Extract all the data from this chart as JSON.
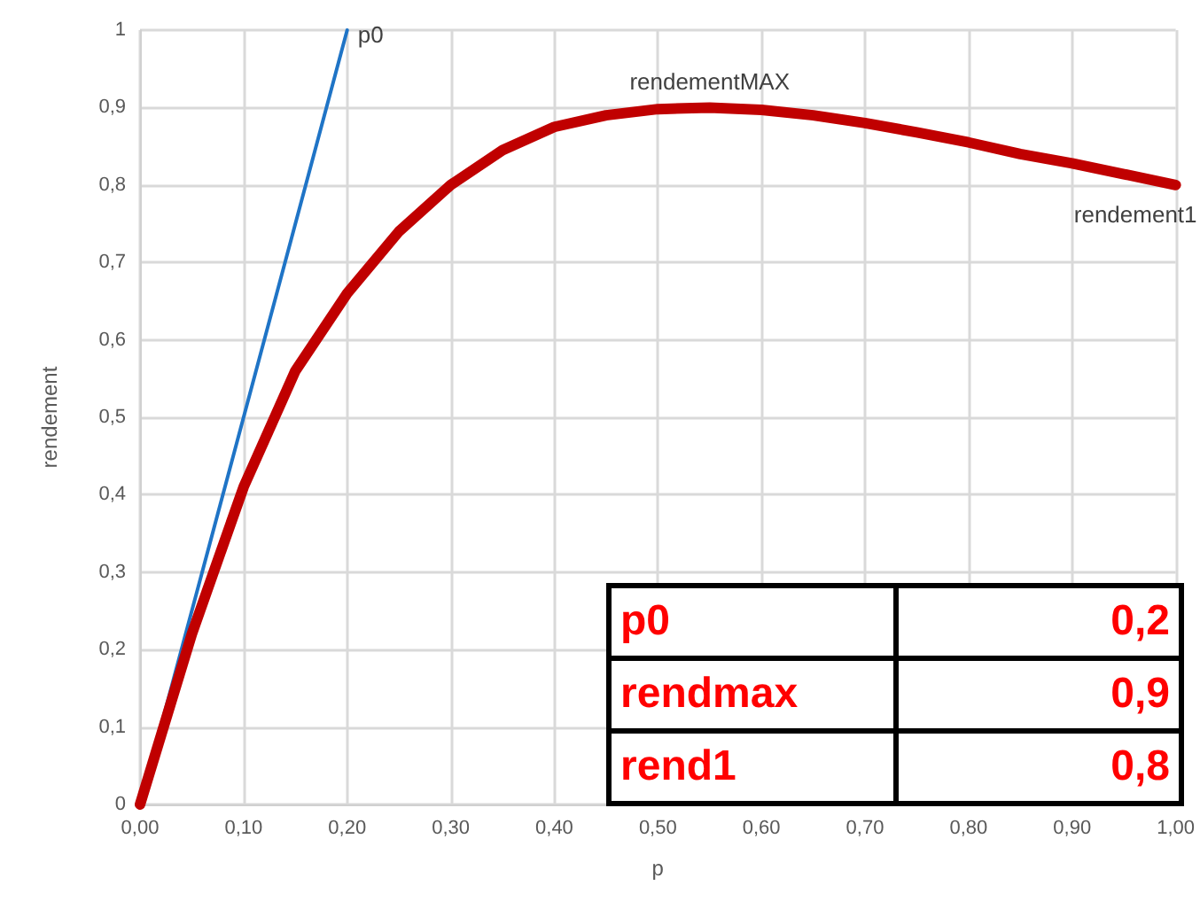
{
  "chart_data": {
    "type": "line",
    "xlabel": "p",
    "ylabel": "rendement",
    "xlim": [
      0,
      1
    ],
    "ylim": [
      0,
      1
    ],
    "xticks": [
      {
        "value": 0,
        "label": "0,00"
      },
      {
        "value": 0.1,
        "label": "0,10"
      },
      {
        "value": 0.2,
        "label": "0,20"
      },
      {
        "value": 0.3,
        "label": "0,30"
      },
      {
        "value": 0.4,
        "label": "0,40"
      },
      {
        "value": 0.5,
        "label": "0,50"
      },
      {
        "value": 0.6,
        "label": "0,60"
      },
      {
        "value": 0.7,
        "label": "0,70"
      },
      {
        "value": 0.8,
        "label": "0,80"
      },
      {
        "value": 0.9,
        "label": "0,90"
      },
      {
        "value": 1,
        "label": "1,00"
      }
    ],
    "yticks": [
      0,
      {
        "value": 0.1,
        "label": "0,1"
      },
      {
        "value": 0.2,
        "label": "0,2"
      },
      {
        "value": 0.3,
        "label": "0,3"
      },
      {
        "value": 0.4,
        "label": "0,4"
      },
      {
        "value": 0.5,
        "label": "0,5"
      },
      {
        "value": 0.6,
        "label": "0,6"
      },
      {
        "value": 0.7,
        "label": "0,7"
      },
      {
        "value": 0.8,
        "label": "0,8"
      },
      {
        "value": 0.9,
        "label": "0,9"
      },
      1
    ],
    "grid": true,
    "marker": "none",
    "series": [
      {
        "color": "#1f74c6",
        "x": [
          0,
          0.2
        ],
        "values": [
          0,
          1
        ]
      },
      {
        "color": "#c00000",
        "x": [
          0,
          0.05,
          0.1,
          0.15,
          0.2,
          0.25,
          0.3,
          0.35,
          0.4,
          0.45,
          0.5,
          0.55,
          0.6,
          0.65,
          0.7,
          0.75,
          0.8,
          0.85,
          0.9,
          0.95,
          1
        ],
        "values": [
          0,
          0.22,
          0.41,
          0.56,
          0.66,
          0.74,
          0.8,
          0.845,
          0.875,
          0.89,
          0.898,
          0.9,
          0.897,
          0.89,
          0.88,
          0.868,
          0.855,
          0.84,
          0.828,
          0.814,
          0.8
        ]
      }
    ],
    "annotations": [
      {
        "text": "p0",
        "x": 0.2,
        "y": 1
      },
      {
        "text": "rendementMAX",
        "x": 0.55,
        "y": 0.9
      },
      {
        "text": "rendement1",
        "x": 1,
        "y": 0.8
      },
      "p0",
      "0,2",
      "rendmax",
      "0,9",
      "rend1",
      "0,8"
    ]
  }
}
